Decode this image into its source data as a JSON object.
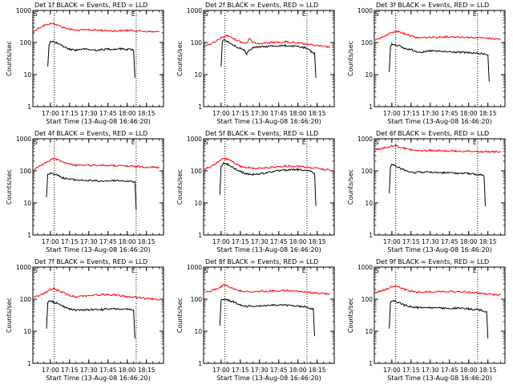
{
  "chart_data": [
    {
      "type": "line",
      "title": "Det 1f BLACK = Events, RED = LLD",
      "xlabel": "Start Time (13-Aug-08 16:46:20)",
      "ylabel": "Counts/sec",
      "yscale": "log",
      "ylim": [
        1,
        1000
      ],
      "x_ticks": [
        "17:00",
        "17:15",
        "17:30",
        "17:45",
        "18:00",
        "18:15"
      ],
      "y_ticks": [
        "1",
        "10",
        "100",
        "1000"
      ],
      "markers": [
        "S",
        "E"
      ],
      "series": [
        {
          "color": "#000000",
          "x": [
            "16:58",
            "16:59",
            "17:00",
            "17:02",
            "17:05",
            "17:10",
            "17:15",
            "17:20",
            "17:25",
            "17:30",
            "17:35",
            "17:40",
            "17:45",
            "17:50",
            "17:55",
            "18:00",
            "18:04",
            "18:05",
            "18:06"
          ],
          "y": [
            18,
            85,
            110,
            108,
            95,
            75,
            62,
            58,
            63,
            60,
            58,
            60,
            63,
            62,
            64,
            62,
            60,
            55,
            8
          ]
        },
        {
          "color": "#ff0000",
          "x": [
            "16:47",
            "16:50",
            "16:55",
            "17:00",
            "17:03",
            "17:05",
            "17:10",
            "17:15",
            "17:20",
            "17:30",
            "17:40",
            "17:50",
            "18:00",
            "18:10",
            "18:20",
            "18:25"
          ],
          "y": [
            220,
            270,
            340,
            390,
            390,
            350,
            300,
            260,
            240,
            250,
            240,
            230,
            240,
            230,
            215,
            215
          ]
        }
      ]
    },
    {
      "type": "line",
      "title": "Det 2f BLACK = Events, RED = LLD",
      "xlabel": "Start Time (13-Aug-08 16:46:20)",
      "ylabel": "Counts/sec",
      "yscale": "log",
      "ylim": [
        1,
        1000
      ],
      "x_ticks": [
        "17:00",
        "17:15",
        "17:30",
        "17:45",
        "18:00",
        "18:15"
      ],
      "y_ticks": [
        "1",
        "10",
        "100",
        "1000"
      ],
      "markers": [
        "S",
        "E"
      ],
      "series": [
        {
          "color": "#000000",
          "x": [
            "17:00",
            "17:01",
            "17:03",
            "17:05",
            "17:10",
            "17:15",
            "17:18",
            "17:20",
            "17:22",
            "17:25",
            "17:30",
            "17:40",
            "17:50",
            "18:00",
            "18:05",
            "18:10",
            "18:13",
            "18:14"
          ],
          "y": [
            18,
            110,
            120,
            105,
            80,
            65,
            58,
            45,
            60,
            70,
            72,
            78,
            80,
            75,
            68,
            55,
            45,
            8
          ]
        },
        {
          "color": "#ff0000",
          "x": [
            "16:47",
            "16:55",
            "17:00",
            "17:05",
            "17:10",
            "17:15",
            "17:20",
            "17:22",
            "17:25",
            "17:30",
            "17:40",
            "17:50",
            "18:00",
            "18:10",
            "18:20",
            "18:25"
          ],
          "y": [
            80,
            100,
            140,
            165,
            130,
            105,
            95,
            130,
            100,
            95,
            100,
            105,
            95,
            85,
            75,
            72
          ]
        }
      ]
    },
    {
      "type": "line",
      "title": "Det 3f BLACK = Events, RED = LLD",
      "xlabel": "Start Time (13-Aug-08 16:46:20)",
      "ylabel": "Counts/sec",
      "yscale": "log",
      "ylim": [
        1,
        1000
      ],
      "x_ticks": [
        "17:00",
        "17:15",
        "17:30",
        "17:45",
        "18:00",
        "18:15"
      ],
      "y_ticks": [
        "1",
        "10",
        "100",
        "1000"
      ],
      "markers": [
        "S",
        "E"
      ],
      "series": [
        {
          "color": "#000000",
          "x": [
            "16:58",
            "16:59",
            "17:00",
            "17:02",
            "17:05",
            "17:10",
            "17:15",
            "17:20",
            "17:25",
            "17:30",
            "17:40",
            "17:50",
            "18:00",
            "18:10",
            "18:15",
            "18:16"
          ],
          "y": [
            12,
            75,
            90,
            88,
            80,
            65,
            60,
            52,
            50,
            55,
            52,
            50,
            48,
            45,
            42,
            6
          ]
        },
        {
          "color": "#ff0000",
          "x": [
            "16:47",
            "16:55",
            "17:00",
            "17:05",
            "17:10",
            "17:15",
            "17:20",
            "17:30",
            "17:40",
            "17:50",
            "18:00",
            "18:10",
            "18:20",
            "18:25"
          ],
          "y": [
            120,
            160,
            210,
            220,
            190,
            160,
            140,
            145,
            150,
            150,
            145,
            140,
            130,
            125
          ]
        }
      ]
    },
    {
      "type": "line",
      "title": "Det 4f BLACK = Events, RED = LLD",
      "xlabel": "Start Time (13-Aug-08 16:46:20)",
      "ylabel": "Counts/sec",
      "yscale": "log",
      "ylim": [
        1,
        1000
      ],
      "x_ticks": [
        "17:00",
        "17:15",
        "17:30",
        "17:45",
        "18:00",
        "18:15"
      ],
      "y_ticks": [
        "1",
        "10",
        "100",
        "1000"
      ],
      "markers": [
        "S",
        "E"
      ],
      "series": [
        {
          "color": "#000000",
          "x": [
            "16:57",
            "16:58",
            "17:00",
            "17:02",
            "17:05",
            "17:10",
            "17:15",
            "17:20",
            "17:30",
            "17:40",
            "17:50",
            "18:00",
            "18:06",
            "18:07"
          ],
          "y": [
            15,
            80,
            85,
            82,
            75,
            60,
            55,
            52,
            50,
            48,
            50,
            48,
            45,
            6
          ]
        },
        {
          "color": "#ff0000",
          "x": [
            "16:47",
            "16:55",
            "17:00",
            "17:03",
            "17:05",
            "17:10",
            "17:15",
            "17:20",
            "17:30",
            "17:40",
            "17:50",
            "18:00",
            "18:10",
            "18:20",
            "18:25"
          ],
          "y": [
            110,
            160,
            220,
            240,
            225,
            190,
            160,
            150,
            150,
            150,
            145,
            140,
            135,
            130,
            125
          ]
        }
      ]
    },
    {
      "type": "line",
      "title": "Det 5f BLACK = Events, RED = LLD",
      "xlabel": "Start Time (13-Aug-08 16:46:20)",
      "ylabel": "Counts/sec",
      "yscale": "log",
      "ylim": [
        1,
        1000
      ],
      "x_ticks": [
        "17:00",
        "17:15",
        "17:30",
        "17:45",
        "18:00",
        "18:15"
      ],
      "y_ticks": [
        "1",
        "10",
        "100",
        "1000"
      ],
      "markers": [
        "S",
        "E"
      ],
      "series": [
        {
          "color": "#000000",
          "x": [
            "16:59",
            "17:00",
            "17:02",
            "17:05",
            "17:10",
            "17:15",
            "17:20",
            "17:25",
            "17:30",
            "17:40",
            "17:50",
            "18:00",
            "18:05",
            "18:10",
            "18:13",
            "18:14"
          ],
          "y": [
            18,
            140,
            170,
            160,
            120,
            95,
            80,
            78,
            80,
            95,
            105,
            108,
            105,
            95,
            80,
            8
          ]
        },
        {
          "color": "#ff0000",
          "x": [
            "16:47",
            "16:55",
            "17:00",
            "17:03",
            "17:05",
            "17:10",
            "17:15",
            "17:20",
            "17:22",
            "17:25",
            "17:30",
            "17:40",
            "17:50",
            "18:00",
            "18:10",
            "18:20",
            "18:25"
          ],
          "y": [
            110,
            160,
            220,
            240,
            230,
            180,
            140,
            120,
            135,
            120,
            120,
            130,
            140,
            140,
            125,
            110,
            108
          ]
        }
      ]
    },
    {
      "type": "line",
      "title": "Det 6f BLACK = Events, RED = LLD",
      "xlabel": "Start Time (13-Aug-08 16:46:20)",
      "ylabel": "Counts/sec",
      "yscale": "log",
      "ylim": [
        1,
        1000
      ],
      "x_ticks": [
        "17:00",
        "17:15",
        "17:30",
        "17:45",
        "18:00",
        "18:15"
      ],
      "y_ticks": [
        "1",
        "10",
        "100",
        "1000"
      ],
      "markers": [
        "S",
        "E"
      ],
      "series": [
        {
          "color": "#000000",
          "x": [
            "16:58",
            "16:59",
            "17:00",
            "17:02",
            "17:05",
            "17:10",
            "17:15",
            "17:18",
            "17:20",
            "17:25",
            "17:30",
            "17:40",
            "17:50",
            "18:00",
            "18:10",
            "18:12",
            "18:13"
          ],
          "y": [
            20,
            140,
            150,
            148,
            130,
            105,
            95,
            85,
            95,
            90,
            90,
            88,
            85,
            82,
            75,
            70,
            8
          ]
        },
        {
          "color": "#ff0000",
          "x": [
            "16:47",
            "16:55",
            "17:00",
            "17:03",
            "17:05",
            "17:10",
            "17:15",
            "17:20",
            "17:30",
            "17:40",
            "17:50",
            "18:00",
            "18:10",
            "18:20",
            "18:25"
          ],
          "y": [
            450,
            530,
            600,
            620,
            580,
            500,
            450,
            420,
            430,
            420,
            415,
            410,
            400,
            395,
            390
          ]
        }
      ]
    },
    {
      "type": "line",
      "title": "Det 7f BLACK = Events, RED = LLD",
      "xlabel": "Start Time (13-Aug-08 16:46:20)",
      "ylabel": "Counts/sec",
      "yscale": "log",
      "ylim": [
        1,
        1000
      ],
      "x_ticks": [
        "17:00",
        "17:15",
        "17:30",
        "17:45",
        "18:00",
        "18:15"
      ],
      "y_ticks": [
        "1",
        "10",
        "100",
        "1000"
      ],
      "markers": [
        "S",
        "E"
      ],
      "series": [
        {
          "color": "#000000",
          "x": [
            "16:57",
            "16:58",
            "17:00",
            "17:02",
            "17:05",
            "17:10",
            "17:15",
            "17:20",
            "17:30",
            "17:40",
            "17:50",
            "18:00",
            "18:05",
            "18:06"
          ],
          "y": [
            12,
            80,
            90,
            85,
            75,
            60,
            50,
            45,
            47,
            48,
            50,
            48,
            45,
            6
          ]
        },
        {
          "color": "#ff0000",
          "x": [
            "16:47",
            "16:55",
            "17:00",
            "17:03",
            "17:05",
            "17:10",
            "17:15",
            "17:20",
            "17:30",
            "17:40",
            "17:50",
            "18:00",
            "18:10",
            "18:20",
            "18:25"
          ],
          "y": [
            110,
            150,
            200,
            210,
            195,
            160,
            130,
            120,
            130,
            140,
            135,
            120,
            110,
            100,
            95
          ]
        }
      ]
    },
    {
      "type": "line",
      "title": "Det 8f BLACK = Events, RED = LLD",
      "xlabel": "Start Time (13-Aug-08 16:46:20)",
      "ylabel": "Counts/sec",
      "yscale": "log",
      "ylim": [
        1,
        1000
      ],
      "x_ticks": [
        "17:00",
        "17:15",
        "17:30",
        "17:45",
        "18:00",
        "18:15"
      ],
      "y_ticks": [
        "1",
        "10",
        "100",
        "1000"
      ],
      "markers": [
        "S",
        "E"
      ],
      "series": [
        {
          "color": "#000000",
          "x": [
            "16:59",
            "17:00",
            "17:02",
            "17:05",
            "17:10",
            "17:15",
            "17:20",
            "17:30",
            "17:40",
            "17:50",
            "18:00",
            "18:05",
            "18:10",
            "18:12",
            "18:13"
          ],
          "y": [
            15,
            90,
            100,
            95,
            80,
            65,
            60,
            62,
            65,
            65,
            60,
            58,
            52,
            48,
            7
          ]
        },
        {
          "color": "#ff0000",
          "x": [
            "16:47",
            "16:55",
            "17:00",
            "17:03",
            "17:05",
            "17:10",
            "17:15",
            "17:20",
            "17:30",
            "17:40",
            "17:50",
            "18:00",
            "18:10",
            "18:20",
            "18:25"
          ],
          "y": [
            160,
            200,
            250,
            280,
            260,
            210,
            180,
            170,
            175,
            180,
            185,
            175,
            160,
            150,
            145
          ]
        }
      ]
    },
    {
      "type": "line",
      "title": "Det 9f BLACK = Events, RED = LLD",
      "xlabel": "Start Time (13-Aug-08 16:46:20)",
      "ylabel": "Counts/sec",
      "yscale": "log",
      "ylim": [
        1,
        1000
      ],
      "x_ticks": [
        "17:00",
        "17:15",
        "17:30",
        "17:45",
        "18:00",
        "18:15"
      ],
      "y_ticks": [
        "1",
        "10",
        "100",
        "1000"
      ],
      "markers": [
        "S",
        "E"
      ],
      "series": [
        {
          "color": "#000000",
          "x": [
            "16:58",
            "16:59",
            "17:00",
            "17:02",
            "17:05",
            "17:10",
            "17:15",
            "17:20",
            "17:30",
            "17:40",
            "17:50",
            "18:00",
            "18:05",
            "18:10",
            "18:14",
            "18:15"
          ],
          "y": [
            12,
            85,
            90,
            88,
            80,
            65,
            58,
            55,
            55,
            52,
            52,
            50,
            48,
            45,
            40,
            6
          ]
        },
        {
          "color": "#ff0000",
          "x": [
            "16:47",
            "16:55",
            "17:00",
            "17:03",
            "17:05",
            "17:10",
            "17:15",
            "17:20",
            "17:30",
            "17:40",
            "17:50",
            "18:00",
            "18:10",
            "18:20",
            "18:25"
          ],
          "y": [
            160,
            200,
            250,
            260,
            240,
            200,
            175,
            165,
            170,
            175,
            170,
            165,
            150,
            140,
            135
          ]
        }
      ]
    }
  ]
}
